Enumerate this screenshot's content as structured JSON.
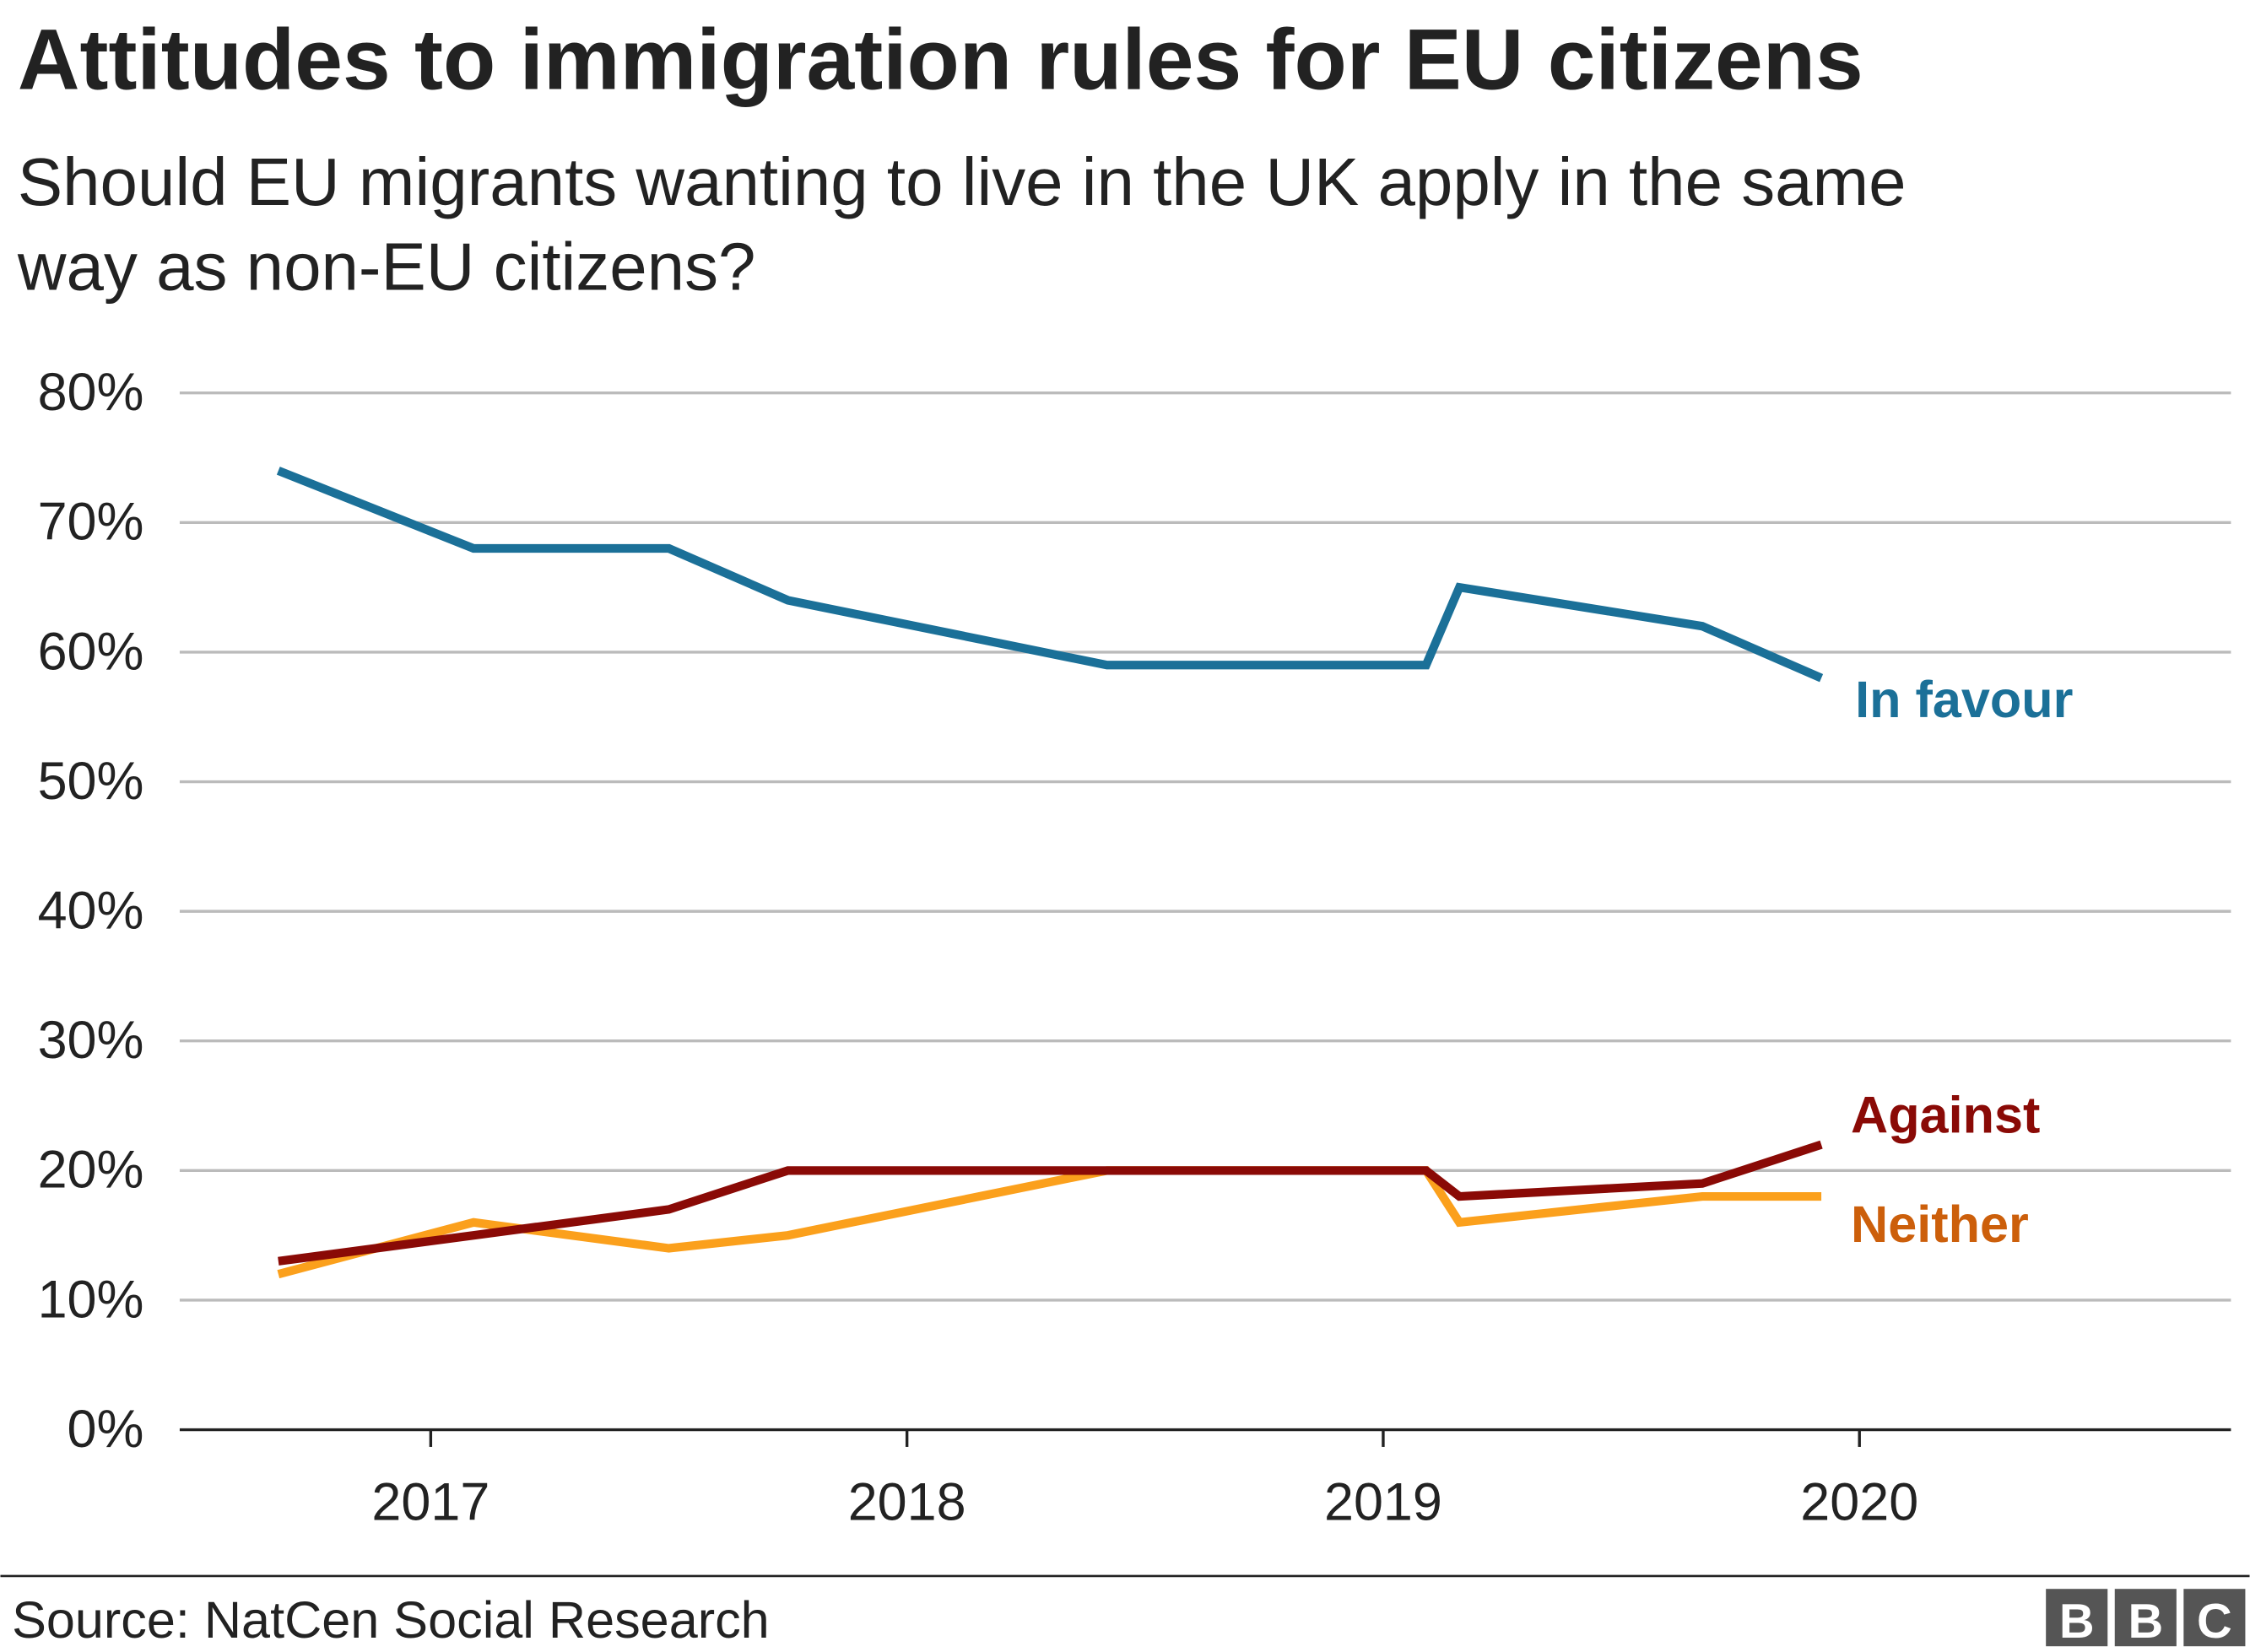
{
  "chart_data": {
    "type": "line",
    "title": "Attitudes to immigration rules for EU citizens",
    "subtitle_lines": [
      "Should EU migrants wanting to live in the UK apply in the same",
      "way as non-EU citizens?"
    ],
    "xlabel": "",
    "ylabel": "",
    "xlim": [
      2016.47,
      2020.77
    ],
    "ylim": [
      0,
      80
    ],
    "x_ticks": [
      2017,
      2018,
      2019,
      2020
    ],
    "x_tick_labels": [
      "2017",
      "2018",
      "2019",
      "2020"
    ],
    "y_ticks": [
      0,
      10,
      20,
      30,
      40,
      50,
      60,
      70,
      80
    ],
    "y_tick_labels": [
      "0%",
      "10%",
      "20%",
      "30%",
      "40%",
      "50%",
      "60%",
      "70%",
      "80%"
    ],
    "grid": true,
    "legend": "direct labels at line ends",
    "x": [
      2016.68,
      2017.09,
      2017.5,
      2017.75,
      2018.42,
      2019.09,
      2019.16,
      2019.67,
      2019.92
    ],
    "series": [
      {
        "name": "In favour",
        "color": "#1b7098",
        "values": [
          74,
          68,
          68,
          64,
          59,
          59,
          65,
          62,
          58
        ]
      },
      {
        "name": "Against",
        "color": "#8a0a06",
        "values": [
          13,
          15,
          17,
          20,
          20,
          20,
          18,
          19,
          22
        ]
      },
      {
        "name": "Neither",
        "color": "#fba01c",
        "label_color": "#cc5f0b",
        "values": [
          12,
          16,
          14,
          15,
          20,
          20,
          16,
          18,
          18
        ]
      }
    ]
  },
  "footer": {
    "source": "Source: NatCen Social Research",
    "logo": [
      "B",
      "B",
      "C"
    ]
  }
}
